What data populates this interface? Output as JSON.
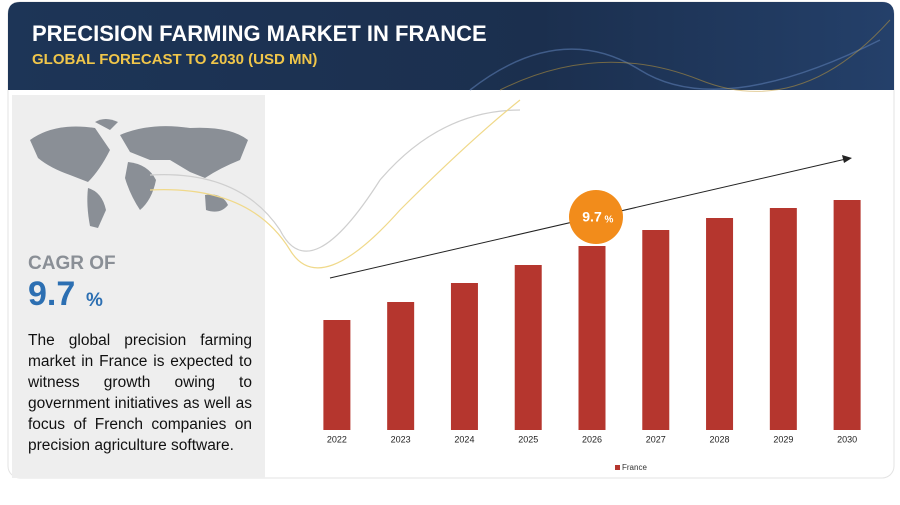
{
  "chart_data": {
    "type": "bar",
    "title": "PRECISION FARMING MARKET IN FRANCE",
    "subtitle": "GLOBAL FORECAST TO 2030 (USD MN)",
    "categories": [
      "2022",
      "2023",
      "2024",
      "2025",
      "2026",
      "2027",
      "2028",
      "2029",
      "2030"
    ],
    "series": [
      {
        "name": "France",
        "color": "#b5362e",
        "values": [
          110,
          128,
          147,
          165,
          184,
          200,
          212,
          222,
          230
        ]
      }
    ],
    "cagr_label": "CAGR OF",
    "cagr_value": "9.7",
    "cagr_unit": "%",
    "badge_value": "9.7",
    "badge_unit": "%",
    "description": "The global precision farming market in France is expected to witness growth owing to government initiatives as well as focus of French companies on precision agriculture software."
  }
}
